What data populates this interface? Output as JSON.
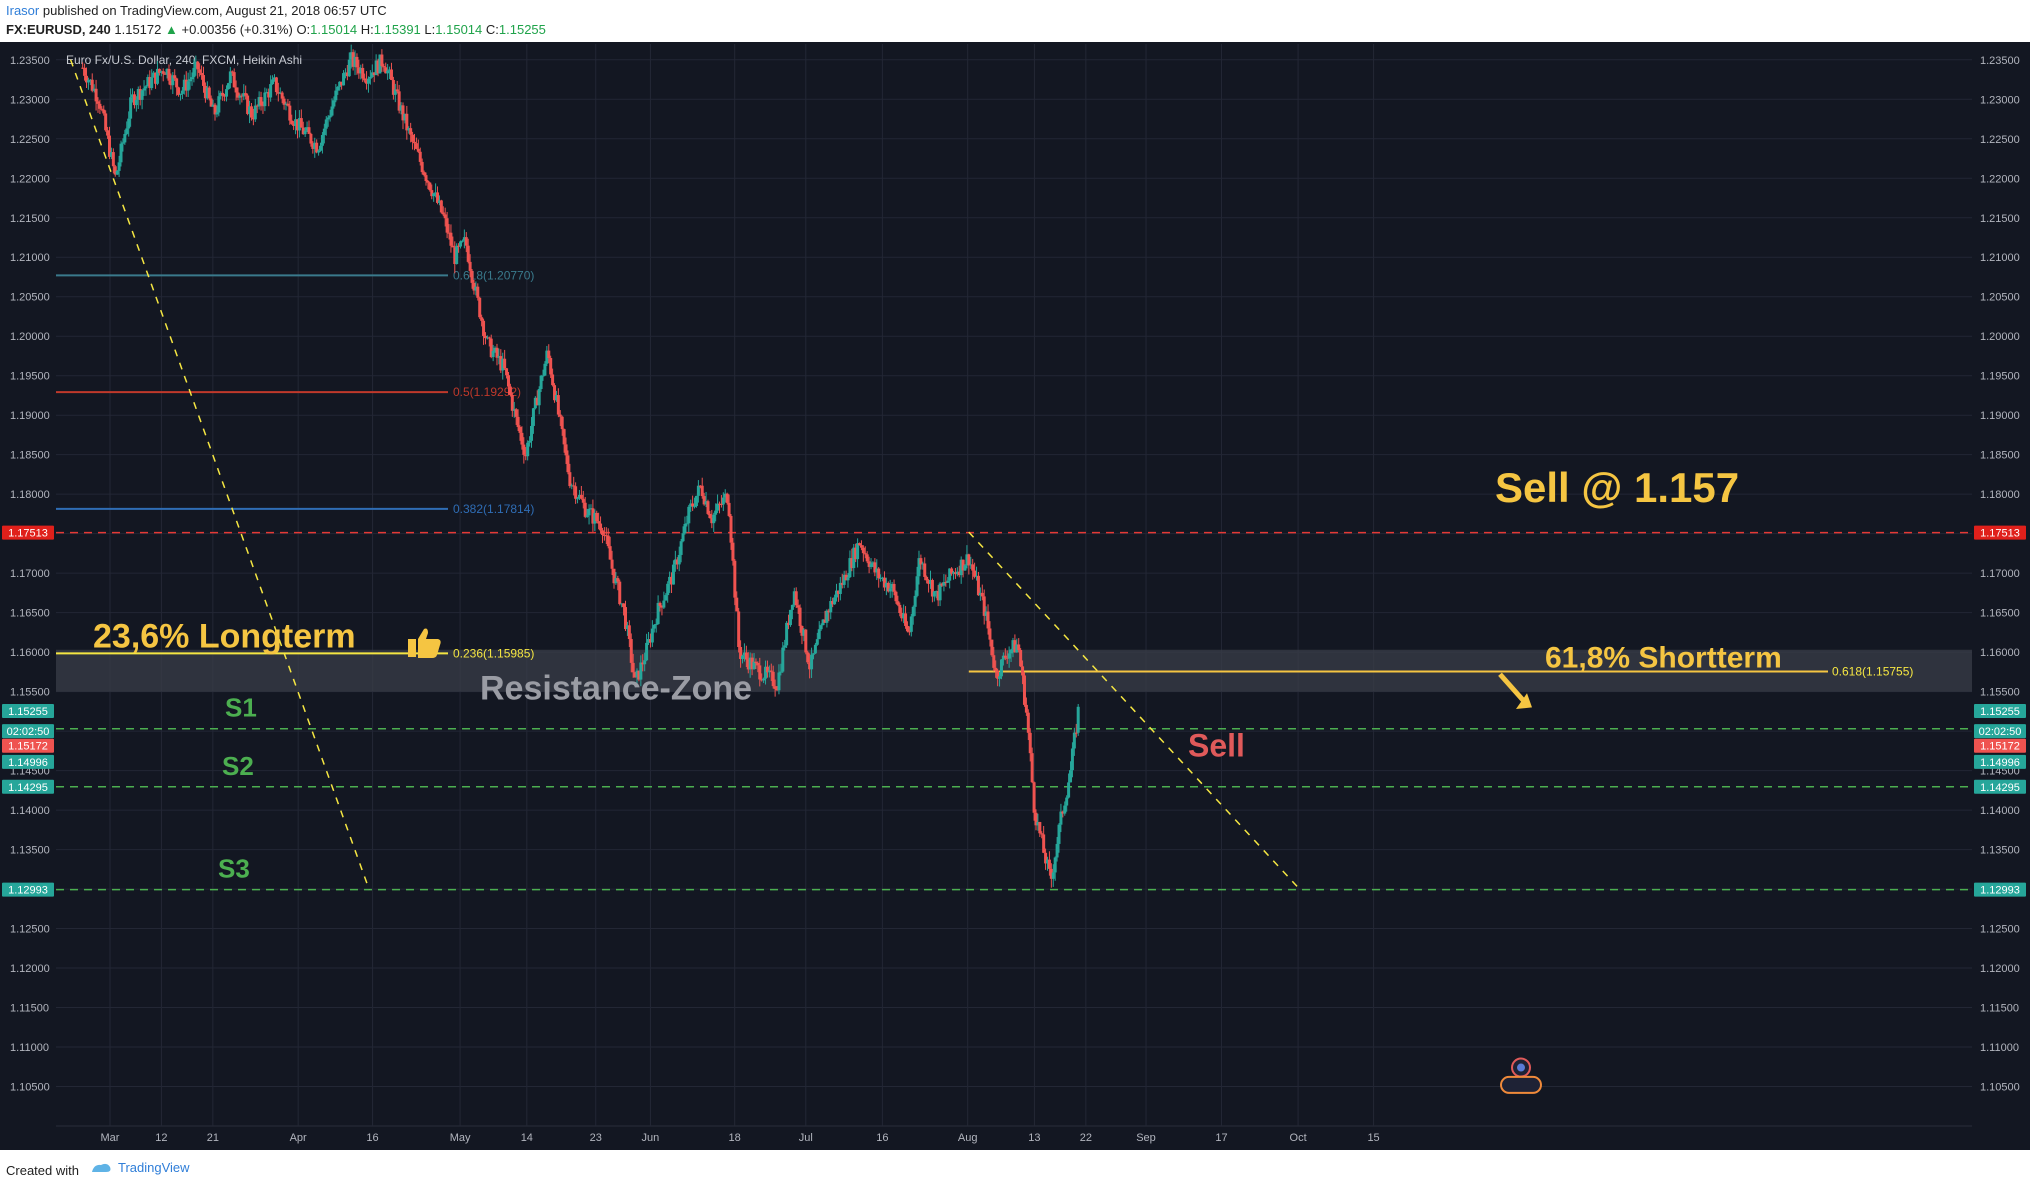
{
  "header": {
    "author": "Irasor",
    "published": "published on TradingView.com, August 21, 2018 06:57 UTC",
    "symbol": "FX:EURUSD, 240",
    "last": "1.15172",
    "change": "+0.00356 (+0.31%)",
    "o_label": "O:",
    "o": "1.15014",
    "h_label": "H:",
    "h": "1.15391",
    "l_label": "L:",
    "l": "1.15014",
    "c_label": "C:",
    "c": "1.15255"
  },
  "footer": {
    "created": "Created with",
    "brand": "TradingView"
  },
  "colors": {
    "bg": "#131722",
    "up": "#26a69a",
    "down": "#ef5350",
    "yellow": "#f5c542",
    "green_text": "#4caf50",
    "red_text": "#e05a5a"
  },
  "chart_data": {
    "type": "candlestick",
    "title": "Euro Fx/U.S. Dollar, 240, FXCM, Heikin Ashi",
    "ylim": [
      1.1,
      1.237
    ],
    "y_ticks": [
      "1.23500",
      "1.23000",
      "1.22500",
      "1.22000",
      "1.21500",
      "1.21000",
      "1.20500",
      "1.20000",
      "1.19500",
      "1.19000",
      "1.18500",
      "1.18000",
      "1.17500",
      "1.17000",
      "1.16500",
      "1.16000",
      "1.15500",
      "1.15000",
      "1.14500",
      "1.14000",
      "1.13500",
      "1.13000",
      "1.12500",
      "1.12000",
      "1.11500",
      "1.11000",
      "1.10500"
    ],
    "x_ticks": [
      {
        "label": "Mar",
        "t": 0.0
      },
      {
        "label": "12",
        "t": 0.047
      },
      {
        "label": "21",
        "t": 0.094
      },
      {
        "label": "Apr",
        "t": 0.172
      },
      {
        "label": "16",
        "t": 0.24
      },
      {
        "label": "May",
        "t": 0.32
      },
      {
        "label": "14",
        "t": 0.381
      },
      {
        "label": "23",
        "t": 0.444
      },
      {
        "label": "Jun",
        "t": 0.494
      },
      {
        "label": "18",
        "t": 0.571
      },
      {
        "label": "Jul",
        "t": 0.636
      },
      {
        "label": "16",
        "t": 0.706
      },
      {
        "label": "Aug",
        "t": 0.784
      },
      {
        "label": "13",
        "t": 0.845
      },
      {
        "label": "22",
        "t": 0.892
      },
      {
        "label": "Sep",
        "t": 0.947
      },
      {
        "label": "17",
        "t": 1.016
      },
      {
        "label": "Oct",
        "t": 1.086
      },
      {
        "label": "15",
        "t": 1.155
      }
    ],
    "price_path": [
      [
        -0.025,
        1.234
      ],
      [
        -0.01,
        1.23
      ],
      [
        0.005,
        1.22
      ],
      [
        0.02,
        1.23
      ],
      [
        0.035,
        1.232
      ],
      [
        0.05,
        1.234
      ],
      [
        0.065,
        1.231
      ],
      [
        0.08,
        1.234
      ],
      [
        0.095,
        1.228
      ],
      [
        0.11,
        1.233
      ],
      [
        0.13,
        1.228
      ],
      [
        0.15,
        1.232
      ],
      [
        0.17,
        1.227
      ],
      [
        0.19,
        1.224
      ],
      [
        0.205,
        1.23
      ],
      [
        0.22,
        1.235
      ],
      [
        0.235,
        1.233
      ],
      [
        0.25,
        1.235
      ],
      [
        0.26,
        1.231
      ],
      [
        0.275,
        1.225
      ],
      [
        0.29,
        1.22
      ],
      [
        0.305,
        1.215
      ],
      [
        0.315,
        1.21
      ],
      [
        0.325,
        1.212
      ],
      [
        0.335,
        1.205
      ],
      [
        0.345,
        1.199
      ],
      [
        0.36,
        1.196
      ],
      [
        0.37,
        1.19
      ],
      [
        0.38,
        1.185
      ],
      [
        0.39,
        1.192
      ],
      [
        0.4,
        1.198
      ],
      [
        0.41,
        1.19
      ],
      [
        0.42,
        1.182
      ],
      [
        0.435,
        1.178
      ],
      [
        0.45,
        1.176
      ],
      [
        0.46,
        1.17
      ],
      [
        0.47,
        1.165
      ],
      [
        0.48,
        1.156
      ],
      [
        0.49,
        1.16
      ],
      [
        0.5,
        1.165
      ],
      [
        0.515,
        1.17
      ],
      [
        0.53,
        1.178
      ],
      [
        0.54,
        1.181
      ],
      [
        0.55,
        1.177
      ],
      [
        0.565,
        1.18
      ],
      [
        0.575,
        1.16
      ],
      [
        0.59,
        1.158
      ],
      [
        0.61,
        1.156
      ],
      [
        0.625,
        1.168
      ],
      [
        0.64,
        1.158
      ],
      [
        0.655,
        1.165
      ],
      [
        0.67,
        1.169
      ],
      [
        0.685,
        1.174
      ],
      [
        0.7,
        1.17
      ],
      [
        0.715,
        1.168
      ],
      [
        0.73,
        1.162
      ],
      [
        0.74,
        1.172
      ],
      [
        0.755,
        1.167
      ],
      [
        0.77,
        1.17
      ],
      [
        0.785,
        1.172
      ],
      [
        0.8,
        1.165
      ],
      [
        0.81,
        1.157
      ],
      [
        0.82,
        1.16
      ],
      [
        0.83,
        1.161
      ],
      [
        0.838,
        1.152
      ],
      [
        0.845,
        1.14
      ],
      [
        0.853,
        1.135
      ],
      [
        0.86,
        1.131
      ],
      [
        0.868,
        1.138
      ],
      [
        0.878,
        1.145
      ],
      [
        0.885,
        1.1525
      ]
    ],
    "fib_levels": [
      {
        "label": "0.618(1.20770)",
        "price": 1.2077,
        "color": "#3a7a8c"
      },
      {
        "label": "0.5(1.19292)",
        "price": 1.19292,
        "color": "#c0392b"
      },
      {
        "label": "0.382(1.17814)",
        "price": 1.17814,
        "color": "#2f6db5"
      },
      {
        "label": "0.236(1.15985)",
        "price": 1.15985,
        "color": "#f5e642"
      }
    ],
    "fib_short": {
      "label": "0.618(1.15755)",
      "price": 1.15755
    },
    "price_labels": [
      {
        "text": "1.17513",
        "price": 1.17513,
        "color": "#e0201b"
      },
      {
        "text": "1.15255",
        "price": 1.15255,
        "color": "#26a69a"
      },
      {
        "text": "02:02:50",
        "price": 1.15,
        "color": "#26a69a"
      },
      {
        "text": "1.15172",
        "price": 1.14815,
        "color": "#ef5350"
      },
      {
        "text": "1.14996",
        "price": 1.1461,
        "color": "#26a69a"
      },
      {
        "text": "1.14295",
        "price": 1.14295,
        "color": "#26a69a"
      },
      {
        "text": "1.12993",
        "price": 1.12993,
        "color": "#26a69a"
      }
    ],
    "support_lines": [
      {
        "label": "S1",
        "price": 1.1503
      },
      {
        "label": "S2",
        "price": 1.14295
      },
      {
        "label": "S3",
        "price": 1.12993
      }
    ],
    "resistance_line": 1.17513,
    "resistance_zone": [
      1.155,
      1.1603
    ],
    "annotations": {
      "longterm": "23,6% Longterm",
      "shortterm": "61,8% Shortterm",
      "zone": "Resistance-Zone",
      "sell": "Sell",
      "sell_at": "Sell @ 1.157"
    }
  }
}
